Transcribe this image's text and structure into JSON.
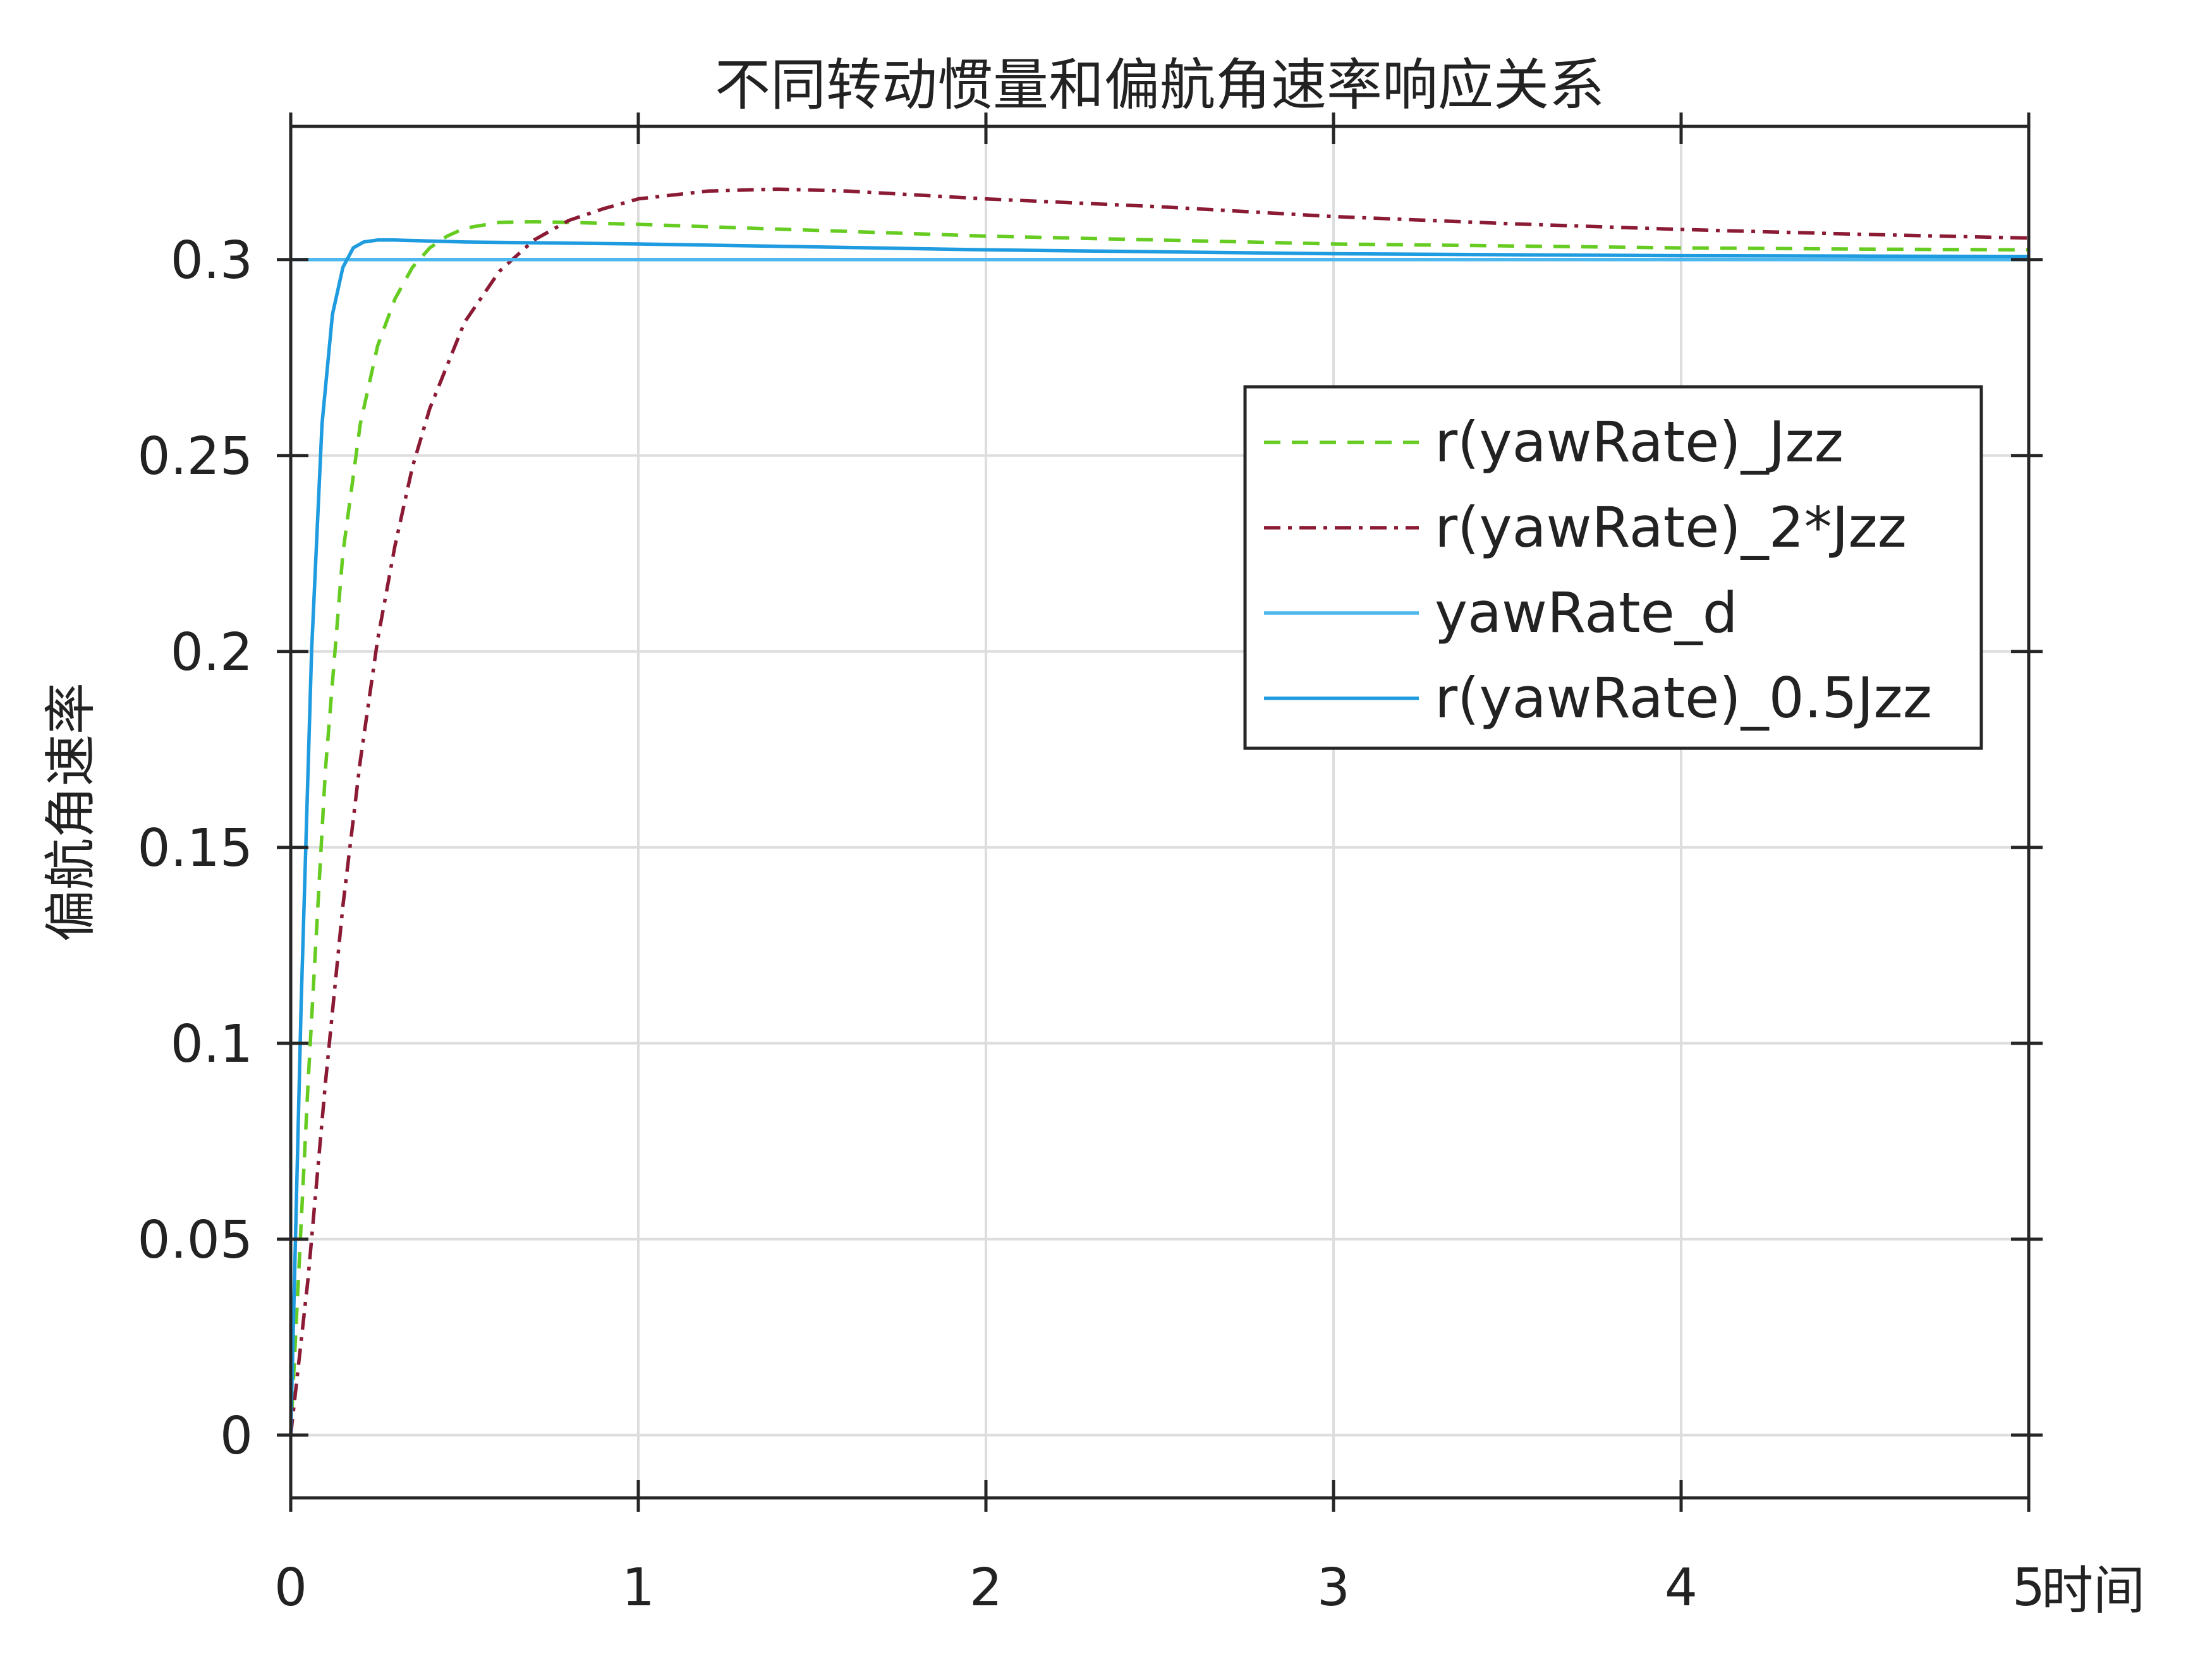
{
  "chart_data": {
    "type": "line",
    "title": "不同转动惯量和偏航角速率响应关系",
    "xlabel": "时间",
    "ylabel": "偏航角速率",
    "xlim": [
      0,
      5
    ],
    "ylim": [
      -0.016,
      0.334
    ],
    "x_ticks": [
      0,
      1,
      2,
      3,
      4,
      5
    ],
    "x_tick_labels": [
      "0",
      "1",
      "2",
      "3",
      "4",
      "5"
    ],
    "y_ticks": [
      0,
      0.05,
      0.1,
      0.15,
      0.2,
      0.25,
      0.3
    ],
    "y_tick_labels": [
      "0",
      "0.05",
      "0.1",
      "0.15",
      "0.2",
      "0.25",
      "0.3"
    ],
    "grid": true,
    "box": true,
    "legend_position": "upper-right",
    "series": [
      {
        "name": "r(yawRate)_Jzz",
        "color": "#66cc22",
        "dash": "dashed",
        "x": [
          0,
          0.05,
          0.1,
          0.15,
          0.2,
          0.25,
          0.3,
          0.35,
          0.4,
          0.45,
          0.5,
          0.6,
          0.7,
          0.8,
          1.0,
          1.5,
          2.0,
          2.5,
          3.0,
          3.5,
          4.0,
          4.5,
          5.0
        ],
        "values": [
          0,
          0.09,
          0.17,
          0.225,
          0.258,
          0.278,
          0.29,
          0.298,
          0.303,
          0.306,
          0.308,
          0.3095,
          0.3097,
          0.3095,
          0.309,
          0.3075,
          0.306,
          0.305,
          0.304,
          0.3035,
          0.303,
          0.3027,
          0.3025
        ]
      },
      {
        "name": "r(yawRate)_2*Jzz",
        "color": "#8b1a35",
        "dash": "dashdot",
        "x": [
          0,
          0.05,
          0.1,
          0.15,
          0.2,
          0.25,
          0.3,
          0.35,
          0.4,
          0.5,
          0.6,
          0.7,
          0.8,
          0.9,
          1.0,
          1.2,
          1.4,
          1.6,
          1.8,
          2.0,
          2.5,
          3.0,
          3.5,
          4.0,
          4.5,
          5.0
        ],
        "values": [
          0,
          0.04,
          0.09,
          0.135,
          0.172,
          0.203,
          0.227,
          0.247,
          0.262,
          0.284,
          0.297,
          0.305,
          0.31,
          0.313,
          0.3155,
          0.3175,
          0.318,
          0.3175,
          0.3165,
          0.3155,
          0.3135,
          0.311,
          0.3092,
          0.3077,
          0.3065,
          0.3055
        ]
      },
      {
        "name": "yawRate_d",
        "color": "#4db8ee",
        "dash": "solid",
        "x": [
          0,
          5
        ],
        "values": [
          0.3,
          0.3
        ]
      },
      {
        "name": "r(yawRate)_0.5Jzz",
        "color": "#1f9be0",
        "dash": "solid",
        "x": [
          0,
          0.03,
          0.06,
          0.09,
          0.12,
          0.15,
          0.18,
          0.21,
          0.25,
          0.3,
          0.5,
          1.0,
          2.0,
          3.0,
          4.0,
          5.0
        ],
        "values": [
          0,
          0.11,
          0.2,
          0.258,
          0.286,
          0.298,
          0.303,
          0.3045,
          0.305,
          0.305,
          0.3045,
          0.304,
          0.3025,
          0.3015,
          0.301,
          0.3008
        ]
      }
    ]
  }
}
